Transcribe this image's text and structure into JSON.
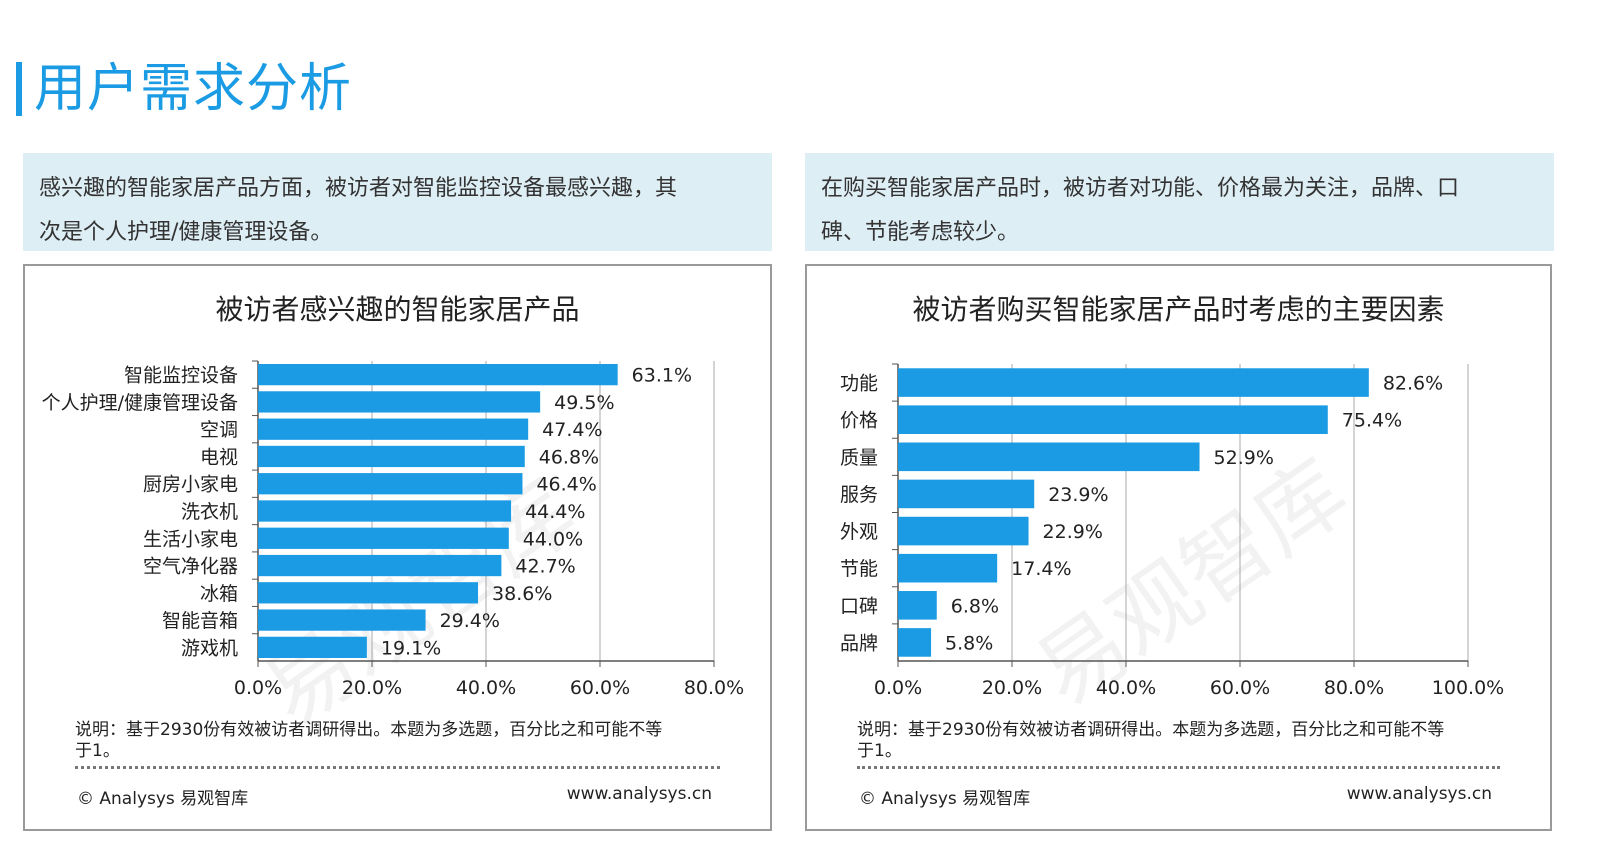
{
  "page": {
    "title": "用户需求分析",
    "watermark": "易观智库",
    "accent_color": "#1a9be3",
    "bar_color": "#1a9be3",
    "summary_bg": "#deeef5"
  },
  "left": {
    "summary_line1": "感兴趣的智能家居产品方面，被访者对智能监控设备最感兴趣，其",
    "summary_line2": "次是个人护理/健康管理设备。",
    "note_line1": "说明：基于2930份有效被访者调研得出。本题为多选题，百分比之和可能不等",
    "note_line2": "于1。",
    "footer_left": "© Analysys 易观智库",
    "footer_right": "www.analysys.cn"
  },
  "right": {
    "summary_line1": "在购买智能家居产品时，被访者对功能、价格最为关注，品牌、口",
    "summary_line2": "碑、节能考虑较少。",
    "note_line1": "说明：基于2930份有效被访者调研得出。本题为多选题，百分比之和可能不等",
    "note_line2": "于1。",
    "footer_left": "© Analysys 易观智库",
    "footer_right": "www.analysys.cn"
  },
  "chart_data": [
    {
      "type": "bar",
      "orientation": "horizontal",
      "title": "被访者感兴趣的智能家居产品",
      "categories": [
        "智能监控设备",
        "个人护理/健康管理设备",
        "空调",
        "电视",
        "厨房小家电",
        "洗衣机",
        "生活小家电",
        "空气净化器",
        "冰箱",
        "智能音箱",
        "游戏机"
      ],
      "values": [
        63.1,
        49.5,
        47.4,
        46.8,
        46.4,
        44.4,
        44.0,
        42.7,
        38.6,
        29.4,
        19.1
      ],
      "value_labels": [
        "63.1%",
        "49.5%",
        "47.4%",
        "46.8%",
        "46.4%",
        "44.4%",
        "44.0%",
        "42.7%",
        "38.6%",
        "29.4%",
        "19.1%"
      ],
      "xlim": [
        0,
        80
      ],
      "xticks": [
        0,
        20,
        40,
        60,
        80
      ],
      "xtick_labels": [
        "0.0%",
        "20.0%",
        "40.0%",
        "60.0%",
        "80.0%"
      ],
      "grid": "vertical"
    },
    {
      "type": "bar",
      "orientation": "horizontal",
      "title": "被访者购买智能家居产品时考虑的主要因素",
      "categories": [
        "功能",
        "价格",
        "质量",
        "服务",
        "外观",
        "节能",
        "口碑",
        "品牌"
      ],
      "values": [
        82.6,
        75.4,
        52.9,
        23.9,
        22.9,
        17.4,
        6.8,
        5.8
      ],
      "value_labels": [
        "82.6%",
        "75.4%",
        "52.9%",
        "23.9%",
        "22.9%",
        "17.4%",
        "6.8%",
        "5.8%"
      ],
      "xlim": [
        0,
        100
      ],
      "xticks": [
        0,
        20,
        40,
        60,
        80,
        100
      ],
      "xtick_labels": [
        "0.0%",
        "20.0%",
        "40.0%",
        "60.0%",
        "80.0%",
        "100.0%"
      ],
      "grid": "vertical"
    }
  ]
}
